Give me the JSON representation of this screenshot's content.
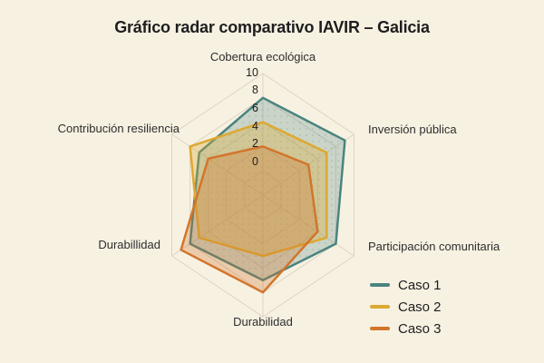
{
  "title": "Gráfico radar comparativo IAVIR – Galicia",
  "colors": {
    "background": "#f7f1e2",
    "grid": "#dcd4c3",
    "title_text": "#1e1e1e",
    "axis_label_text": "#2e2e2e"
  },
  "legend": {
    "position": "bottom-right"
  },
  "chart_data": {
    "type": "radar",
    "grid_shape": "hexagon",
    "categories": [
      "Cobertura ecológica",
      "Inversión pública",
      "Participación comunitaria",
      "Durabilidad",
      "Durabillidad",
      "Contribución resiliencia"
    ],
    "axis_range": [
      0,
      10
    ],
    "tick_step": 2,
    "tick_labels": [
      "10",
      "8",
      "6",
      "4",
      "2",
      "0"
    ],
    "series": [
      {
        "name": "Caso 1",
        "color": "#4a847f",
        "fill_opacity": 0.26,
        "values": [
          8,
          9,
          8,
          7,
          8,
          7
        ]
      },
      {
        "name": "Caso 2",
        "color": "#dda932",
        "fill_opacity": 0.33,
        "values": [
          6,
          7,
          7,
          5,
          7,
          8
        ]
      },
      {
        "name": "Caso 3",
        "color": "#d2752b",
        "fill_opacity": 0.3,
        "values": [
          4,
          5,
          6,
          8,
          9,
          6
        ]
      }
    ]
  }
}
